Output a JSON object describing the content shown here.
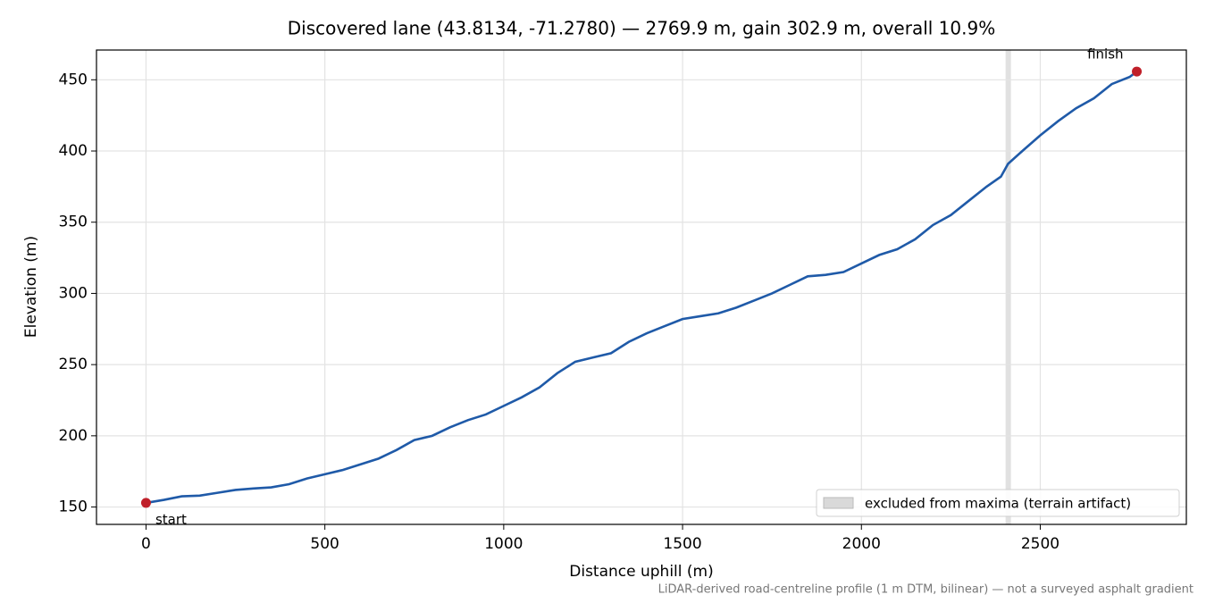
{
  "chart_data": {
    "type": "line",
    "title": "Discovered lane (43.8134, -71.2780) — 2769.9 m, gain 302.9 m, overall 10.9%",
    "xlabel": "Distance uphill (m)",
    "ylabel": "Elevation (m)",
    "footnote": "LiDAR-derived road-centreline profile (1 m DTM, bilinear) — not a surveyed asphalt gradient",
    "x": [
      0,
      50,
      100,
      150,
      200,
      250,
      300,
      350,
      400,
      450,
      500,
      550,
      600,
      650,
      700,
      750,
      800,
      850,
      900,
      950,
      1000,
      1050,
      1100,
      1150,
      1200,
      1250,
      1300,
      1350,
      1400,
      1450,
      1500,
      1550,
      1600,
      1650,
      1700,
      1750,
      1800,
      1850,
      1900,
      1950,
      2000,
      2050,
      2100,
      2150,
      2200,
      2250,
      2300,
      2350,
      2390,
      2410,
      2450,
      2500,
      2550,
      2600,
      2650,
      2700,
      2750,
      2769.9
    ],
    "series": [
      {
        "name": "profile",
        "color": "#1f5aa8",
        "values": [
          152.9,
          155,
          157.5,
          158,
          160,
          162,
          163,
          163.8,
          166,
          170,
          173,
          176,
          180,
          184,
          190,
          197,
          200,
          206,
          211,
          215,
          221,
          227,
          234,
          244,
          252,
          255,
          258,
          266,
          272,
          277,
          282,
          284,
          286,
          290,
          295,
          300,
          306,
          312,
          313,
          315,
          321,
          327,
          331,
          338,
          348,
          355,
          365,
          375,
          382,
          391,
          400,
          411,
          421,
          430,
          437,
          447,
          452,
          455.8
        ]
      }
    ],
    "endpoints": {
      "labels": [
        "start",
        "finish"
      ],
      "color": "#c0202a"
    },
    "excluded_band": {
      "label": "excluded from maxima (terrain artifact)",
      "range": [
        2403,
        2418
      ],
      "color": "#d9d9d9"
    },
    "xlim": [
      -138.5,
      2908.4
    ],
    "ylim": [
      137.8,
      470.9
    ],
    "xticks": [
      0,
      500,
      1000,
      1500,
      2000,
      2500
    ],
    "yticks": [
      150,
      200,
      250,
      300,
      350,
      400,
      450
    ],
    "grid": true,
    "legend": "lower right"
  }
}
